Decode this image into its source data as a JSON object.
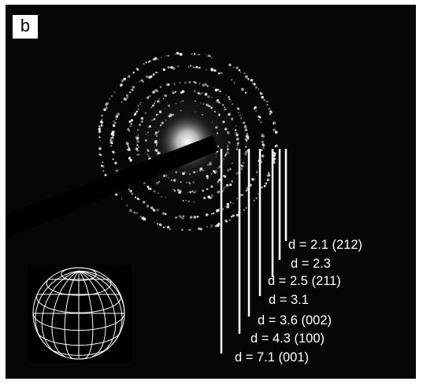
{
  "panel": {
    "label": "b"
  },
  "d_spacings": [
    {
      "text": "d = 2.1 (212)"
    },
    {
      "text": "d = 2.3"
    },
    {
      "text": "d = 2.5 (211)"
    },
    {
      "text": "d = 3.1"
    },
    {
      "text": "d = 3.6 (002)"
    },
    {
      "text": "d = 4.3 (100)"
    },
    {
      "text": "d = 7.1 (001)"
    }
  ],
  "inset": {
    "icon": "wireframe-sphere-icon"
  },
  "colors": {
    "background": "#060606",
    "lines": "#ffffff",
    "rings": "#dcdcdc"
  }
}
